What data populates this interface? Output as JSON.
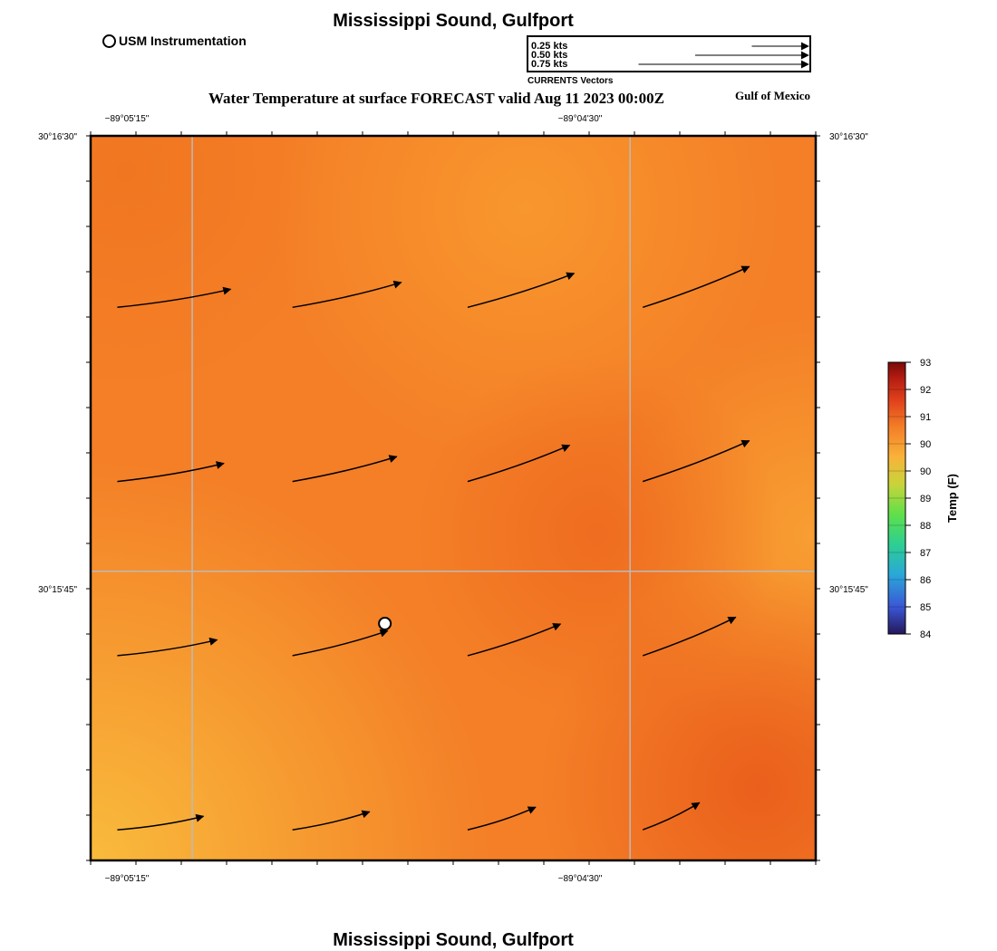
{
  "header": {
    "title": "Mississippi Sound, Gulfport",
    "subtitle": "Water Temperature at surface FORECAST valid Aug 11 2023 00:00Z",
    "region_label": "Gulf of Mexico",
    "usm_legend": "USM Instrumentation"
  },
  "footer": {
    "title": "Mississippi Sound, Gulfport"
  },
  "vector_key": {
    "caption": "CURRENTS Vectors",
    "entries": [
      {
        "label": "0.25 kts",
        "speed": 0.25
      },
      {
        "label": "0.50 kts",
        "speed": 0.5
      },
      {
        "label": "0.75 kts",
        "speed": 0.75
      }
    ]
  },
  "map": {
    "lon_labels": [
      "−89°05'15\"",
      "−89°04'30\""
    ],
    "lat_labels": [
      "30°16'30\"",
      "30°15'45\""
    ],
    "lon_range": [
      -89.0904,
      -89.0697
    ],
    "lat_range": [
      30.2542,
      30.275
    ],
    "gridlines_lon": [
      -89.0875,
      -89.075
    ],
    "gridlines_lat": [
      30.2625
    ],
    "colors": {
      "base": "#f47f27",
      "light": "#f8b33a",
      "dark": "#ee6a1f",
      "gridline": "#bbbbbb"
    },
    "usm_station": {
      "lon": -89.082,
      "lat": 30.261
    },
    "current_vectors": [
      {
        "lon": -89.09,
        "lat": 30.27,
        "u": 0.5,
        "v": 0.08
      },
      {
        "lon": -89.085,
        "lat": 30.27,
        "u": 0.48,
        "v": 0.11
      },
      {
        "lon": -89.08,
        "lat": 30.27,
        "u": 0.47,
        "v": 0.15
      },
      {
        "lon": -89.075,
        "lat": 30.27,
        "u": 0.47,
        "v": 0.18
      },
      {
        "lon": -89.09,
        "lat": 30.265,
        "u": 0.47,
        "v": 0.08
      },
      {
        "lon": -89.085,
        "lat": 30.265,
        "u": 0.46,
        "v": 0.11
      },
      {
        "lon": -89.08,
        "lat": 30.265,
        "u": 0.45,
        "v": 0.16
      },
      {
        "lon": -89.075,
        "lat": 30.265,
        "u": 0.47,
        "v": 0.18
      },
      {
        "lon": -89.09,
        "lat": 30.26,
        "u": 0.44,
        "v": 0.07
      },
      {
        "lon": -89.085,
        "lat": 30.26,
        "u": 0.42,
        "v": 0.11
      },
      {
        "lon": -89.08,
        "lat": 30.26,
        "u": 0.41,
        "v": 0.14
      },
      {
        "lon": -89.075,
        "lat": 30.26,
        "u": 0.41,
        "v": 0.17
      },
      {
        "lon": -89.09,
        "lat": 30.255,
        "u": 0.38,
        "v": 0.06
      },
      {
        "lon": -89.085,
        "lat": 30.255,
        "u": 0.34,
        "v": 0.08
      },
      {
        "lon": -89.08,
        "lat": 30.255,
        "u": 0.3,
        "v": 0.1
      },
      {
        "lon": -89.075,
        "lat": 30.255,
        "u": 0.25,
        "v": 0.12
      }
    ]
  },
  "colorbar": {
    "label": "Temp (F)",
    "min": 84,
    "max": 93,
    "ticks": [
      "84",
      "85",
      "86",
      "87",
      "88",
      "89",
      "90",
      "90",
      "91",
      "92",
      "93"
    ],
    "stops": [
      "#24185a",
      "#3a57d6",
      "#2aa8d8",
      "#2dcf92",
      "#5fe04a",
      "#c8d43a",
      "#f8b33a",
      "#f47f27",
      "#e0411c",
      "#b51d12",
      "#7a0a06"
    ]
  }
}
